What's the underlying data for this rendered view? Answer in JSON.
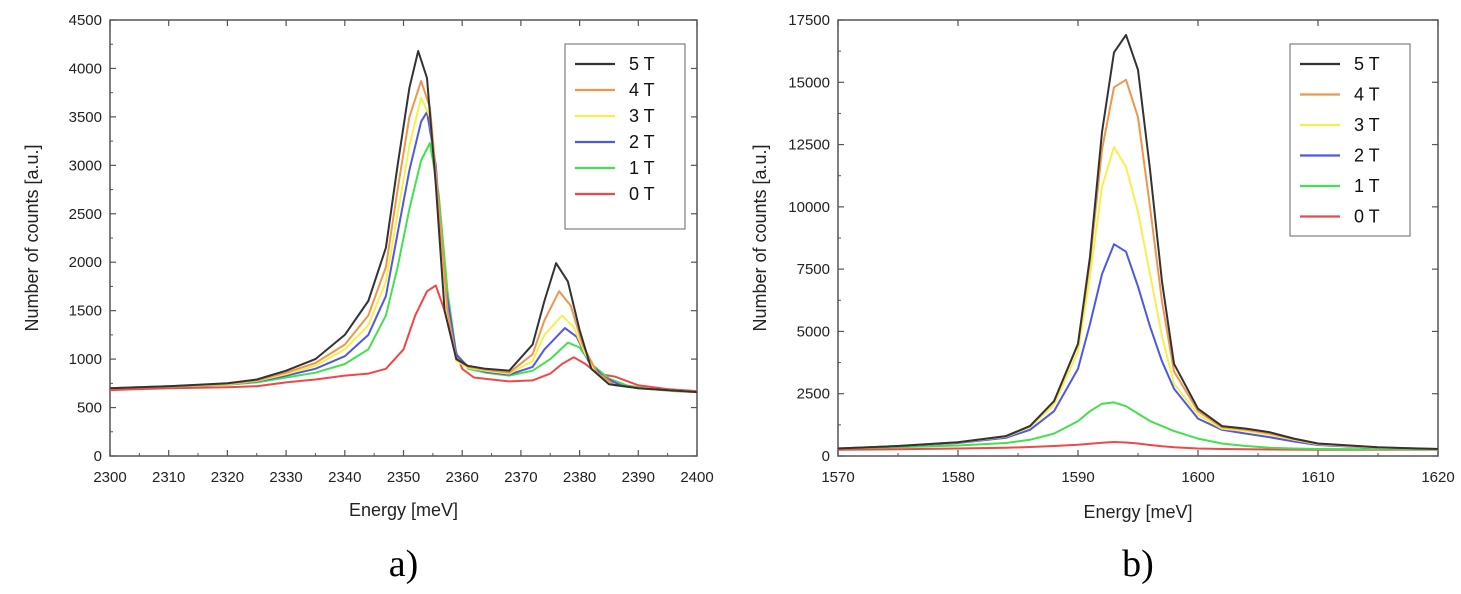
{
  "chart_data": [
    {
      "type": "line",
      "panel_label": "a)",
      "xlabel": "Energy [meV]",
      "ylabel": "Number of counts [a.u.]",
      "xlim": [
        2300,
        2400
      ],
      "ylim": [
        0,
        4500
      ],
      "xticks": [
        2300,
        2310,
        2320,
        2330,
        2340,
        2350,
        2360,
        2370,
        2380,
        2390,
        2400
      ],
      "yticks": [
        0,
        500,
        1000,
        1500,
        2000,
        2500,
        3000,
        3500,
        4000,
        4500
      ],
      "legend_position": "top-right",
      "series": [
        {
          "name": "5 T",
          "color": "#333333",
          "x": [
            2300,
            2310,
            2320,
            2325,
            2330,
            2335,
            2340,
            2344,
            2347,
            2349,
            2351,
            2352.5,
            2354,
            2355.5,
            2357,
            2359,
            2361,
            2364,
            2368,
            2372,
            2374,
            2376,
            2378,
            2380,
            2382,
            2385,
            2390,
            2395,
            2400
          ],
          "y": [
            700,
            720,
            750,
            790,
            880,
            1000,
            1250,
            1600,
            2150,
            3000,
            3800,
            4180,
            3900,
            2800,
            1500,
            1000,
            930,
            900,
            880,
            1150,
            1600,
            1990,
            1800,
            1300,
            900,
            740,
            700,
            680,
            660
          ]
        },
        {
          "name": "4 T",
          "color": "#f0964b",
          "x": [
            2300,
            2310,
            2320,
            2325,
            2330,
            2335,
            2340,
            2344,
            2347,
            2349,
            2351,
            2353,
            2354.5,
            2356,
            2357.5,
            2359,
            2361,
            2364,
            2368,
            2372,
            2374,
            2376.5,
            2378.5,
            2380.5,
            2383,
            2386,
            2390,
            2395,
            2400
          ],
          "y": [
            700,
            720,
            745,
            780,
            860,
            960,
            1150,
            1450,
            1950,
            2750,
            3500,
            3870,
            3600,
            2600,
            1500,
            1000,
            920,
            890,
            860,
            1050,
            1400,
            1700,
            1550,
            1150,
            860,
            730,
            700,
            680,
            660
          ]
        },
        {
          "name": "3 T",
          "color": "#f5f050",
          "x": [
            2300,
            2310,
            2320,
            2325,
            2330,
            2335,
            2340,
            2344,
            2347,
            2349,
            2351,
            2353,
            2354.5,
            2356,
            2357.5,
            2359,
            2361,
            2364,
            2368,
            2372,
            2374,
            2377,
            2379,
            2381,
            2383,
            2386,
            2390,
            2395,
            2400
          ],
          "y": [
            700,
            720,
            740,
            775,
            845,
            930,
            1100,
            1350,
            1800,
            2500,
            3200,
            3700,
            3500,
            2500,
            1450,
            980,
            910,
            880,
            850,
            980,
            1250,
            1450,
            1330,
            1050,
            840,
            730,
            700,
            680,
            660
          ]
        },
        {
          "name": "2 T",
          "color": "#4f58e6",
          "x": [
            2300,
            2310,
            2320,
            2325,
            2330,
            2335,
            2340,
            2344,
            2347,
            2349,
            2351,
            2353,
            2354,
            2355.5,
            2357,
            2359,
            2361,
            2364,
            2368,
            2372,
            2374,
            2377.5,
            2379.5,
            2381.5,
            2384,
            2387,
            2390,
            2395,
            2400
          ],
          "y": [
            700,
            720,
            740,
            770,
            830,
            900,
            1030,
            1250,
            1650,
            2300,
            2950,
            3450,
            3550,
            3000,
            1800,
            1050,
            920,
            870,
            840,
            920,
            1100,
            1320,
            1230,
            980,
            820,
            730,
            700,
            680,
            660
          ]
        },
        {
          "name": "1 T",
          "color": "#44e04f",
          "x": [
            2300,
            2310,
            2320,
            2325,
            2330,
            2335,
            2340,
            2344,
            2347,
            2349,
            2351,
            2353,
            2354.5,
            2356,
            2357.5,
            2359,
            2361,
            2364,
            2368,
            2372,
            2375,
            2378,
            2380,
            2382,
            2385,
            2388,
            2392,
            2396,
            2400
          ],
          "y": [
            700,
            715,
            735,
            760,
            810,
            860,
            950,
            1100,
            1450,
            1950,
            2550,
            3050,
            3230,
            2700,
            1700,
            1050,
            900,
            860,
            830,
            880,
            1000,
            1170,
            1120,
            950,
            800,
            730,
            690,
            670,
            660
          ]
        },
        {
          "name": "0 T",
          "color": "#f04848",
          "x": [
            2300,
            2310,
            2320,
            2325,
            2330,
            2335,
            2340,
            2344,
            2347,
            2350,
            2352,
            2354,
            2355.5,
            2357,
            2358.5,
            2360,
            2362,
            2365,
            2368,
            2372,
            2375,
            2377,
            2379,
            2381,
            2383,
            2386,
            2390,
            2395,
            2400
          ],
          "y": [
            680,
            700,
            710,
            720,
            760,
            790,
            830,
            850,
            900,
            1100,
            1450,
            1700,
            1760,
            1500,
            1150,
            900,
            810,
            790,
            770,
            780,
            850,
            950,
            1020,
            950,
            850,
            820,
            730,
            690,
            670
          ]
        }
      ]
    },
    {
      "type": "line",
      "panel_label": "b)",
      "xlabel": "Energy [meV]",
      "ylabel": "Number of counts [a.u.]",
      "xlim": [
        1570,
        1620
      ],
      "ylim": [
        0,
        17500
      ],
      "xticks": [
        1570,
        1580,
        1590,
        1600,
        1610,
        1620
      ],
      "yticks": [
        0,
        2500,
        5000,
        7500,
        10000,
        12500,
        15000,
        17500
      ],
      "legend_position": "top-right",
      "series": [
        {
          "name": "5 T",
          "color": "#333333",
          "x": [
            1570,
            1575,
            1580,
            1584,
            1586,
            1588,
            1590,
            1591,
            1592,
            1593,
            1594,
            1595,
            1596,
            1597,
            1598,
            1600,
            1602,
            1604,
            1606,
            1608,
            1610,
            1615,
            1620
          ],
          "y": [
            300,
            400,
            550,
            800,
            1200,
            2200,
            4500,
            8000,
            13000,
            16200,
            16900,
            15500,
            11500,
            7000,
            3700,
            1900,
            1200,
            1100,
            950,
            700,
            500,
            350,
            280
          ]
        },
        {
          "name": "4 T",
          "color": "#f0964b",
          "x": [
            1570,
            1575,
            1580,
            1584,
            1586,
            1588,
            1590,
            1591,
            1592,
            1593,
            1594,
            1595,
            1596,
            1597,
            1598,
            1600,
            1602,
            1604,
            1606,
            1608,
            1610,
            1615,
            1620
          ],
          "y": [
            300,
            400,
            550,
            800,
            1200,
            2200,
            4500,
            7800,
            12300,
            14800,
            15100,
            13600,
            10000,
            6200,
            3400,
            1800,
            1150,
            1050,
            900,
            680,
            490,
            340,
            280
          ]
        },
        {
          "name": "3 T",
          "color": "#f5f050",
          "x": [
            1570,
            1575,
            1580,
            1584,
            1586,
            1588,
            1590,
            1591,
            1592,
            1593,
            1594,
            1595,
            1596,
            1597,
            1598,
            1600,
            1602,
            1604,
            1606,
            1608,
            1610,
            1615,
            1620
          ],
          "y": [
            300,
            400,
            540,
            780,
            1150,
            2050,
            4200,
            7200,
            10800,
            12400,
            11600,
            9800,
            7300,
            4800,
            2900,
            1650,
            1100,
            1000,
            850,
            650,
            470,
            330,
            280
          ]
        },
        {
          "name": "2 T",
          "color": "#4f58e6",
          "x": [
            1570,
            1575,
            1580,
            1584,
            1586,
            1588,
            1590,
            1591,
            1592,
            1593,
            1594,
            1595,
            1596,
            1597,
            1598,
            1600,
            1602,
            1604,
            1606,
            1608,
            1610,
            1615,
            1620
          ],
          "y": [
            300,
            390,
            520,
            730,
            1050,
            1800,
            3500,
            5300,
            7300,
            8500,
            8200,
            6800,
            5200,
            3800,
            2700,
            1500,
            1050,
            900,
            750,
            580,
            440,
            320,
            280
          ]
        },
        {
          "name": "1 T",
          "color": "#44e04f",
          "x": [
            1570,
            1575,
            1580,
            1584,
            1586,
            1588,
            1590,
            1591,
            1592,
            1593,
            1594,
            1595,
            1596,
            1597,
            1598,
            1600,
            1602,
            1604,
            1606,
            1608,
            1610,
            1615,
            1620
          ],
          "y": [
            300,
            350,
            420,
            520,
            650,
            900,
            1400,
            1800,
            2100,
            2150,
            2000,
            1700,
            1400,
            1200,
            1000,
            700,
            500,
            400,
            330,
            300,
            280,
            270,
            260
          ]
        },
        {
          "name": "0 T",
          "color": "#f04848",
          "x": [
            1570,
            1575,
            1580,
            1584,
            1586,
            1588,
            1590,
            1591,
            1592,
            1593,
            1594,
            1595,
            1596,
            1597,
            1598,
            1600,
            1602,
            1604,
            1606,
            1608,
            1610,
            1615,
            1620
          ],
          "y": [
            250,
            270,
            300,
            330,
            360,
            400,
            450,
            490,
            530,
            560,
            540,
            500,
            440,
            390,
            350,
            300,
            280,
            270,
            260,
            255,
            250,
            250,
            250
          ]
        }
      ]
    }
  ]
}
